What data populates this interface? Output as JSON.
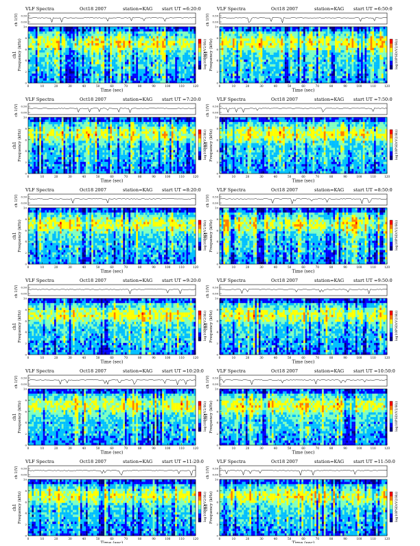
{
  "header_labels": {
    "product": "VLF Spectra",
    "date": "Oct18 2007",
    "station": "station=KAG",
    "start_prefix": "start UT ="
  },
  "axis_labels": {
    "top_ylabel": "ch 1(V)",
    "ylabel_line1": "ch1",
    "ylabel_line2": "Frequency (kHz)",
    "xlabel": "Time (sec)",
    "colorbar_label": "log10PSD(V2/Hz)"
  },
  "palette": [
    "#00007f",
    "#0000ff",
    "#00bfff",
    "#7fffbf",
    "#ffff00",
    "#ff7f00",
    "#ff0000"
  ],
  "chart_data": [
    {
      "type": "heatmap",
      "start_ut": "6:20:0",
      "x_range": [
        0,
        120
      ],
      "y_range": [
        0,
        10
      ],
      "xticks": [
        0,
        10,
        20,
        30,
        40,
        50,
        60,
        70,
        80,
        90,
        100,
        110,
        120
      ],
      "yticks": [
        0,
        2,
        4,
        6,
        8,
        10
      ],
      "signal_ticks": [
        "0.00",
        "0.50"
      ]
    },
    {
      "type": "heatmap",
      "start_ut": "6:50:0",
      "x_range": [
        0,
        120
      ],
      "y_range": [
        0,
        10
      ],
      "xticks": [
        0,
        10,
        20,
        30,
        40,
        50,
        60,
        70,
        80,
        90,
        100,
        110,
        120
      ],
      "yticks": [
        0,
        2,
        4,
        6,
        8,
        10
      ],
      "signal_ticks": [
        "0.00",
        "0.50"
      ]
    },
    {
      "type": "heatmap",
      "start_ut": "7:20:0",
      "x_range": [
        0,
        120
      ],
      "y_range": [
        0,
        10
      ],
      "xticks": [
        0,
        10,
        20,
        30,
        40,
        50,
        60,
        70,
        80,
        90,
        100,
        110,
        120
      ],
      "yticks": [
        0,
        2,
        4,
        6,
        8,
        10
      ],
      "signal_ticks": [
        "0.00",
        "0.50"
      ]
    },
    {
      "type": "heatmap",
      "start_ut": "7:50:0",
      "x_range": [
        0,
        120
      ],
      "y_range": [
        0,
        10
      ],
      "xticks": [
        0,
        10,
        20,
        30,
        40,
        50,
        60,
        70,
        80,
        90,
        100,
        110,
        120
      ],
      "yticks": [
        0,
        2,
        4,
        6,
        8,
        10
      ],
      "signal_ticks": [
        "0.00",
        "0.50"
      ]
    },
    {
      "type": "heatmap",
      "start_ut": "8:20:0",
      "x_range": [
        0,
        120
      ],
      "y_range": [
        0,
        10
      ],
      "xticks": [
        0,
        10,
        20,
        30,
        40,
        50,
        60,
        70,
        80,
        90,
        100,
        110,
        120
      ],
      "yticks": [
        0,
        2,
        4,
        6,
        8,
        10
      ],
      "signal_ticks": [
        "0.00",
        "0.50"
      ]
    },
    {
      "type": "heatmap",
      "start_ut": "8:50:0",
      "x_range": [
        0,
        120
      ],
      "y_range": [
        0,
        10
      ],
      "xticks": [
        0,
        10,
        20,
        30,
        40,
        50,
        60,
        70,
        80,
        90,
        100,
        110,
        120
      ],
      "yticks": [
        0,
        2,
        4,
        6,
        8,
        10
      ],
      "signal_ticks": [
        "0.00",
        "0.50"
      ]
    },
    {
      "type": "heatmap",
      "start_ut": "9:20:0",
      "x_range": [
        0,
        120
      ],
      "y_range": [
        0,
        10
      ],
      "xticks": [
        0,
        10,
        20,
        30,
        40,
        50,
        60,
        70,
        80,
        90,
        100,
        110,
        120
      ],
      "yticks": [
        0,
        2,
        4,
        6,
        8,
        10
      ],
      "signal_ticks": [
        "0.00",
        "0.50"
      ]
    },
    {
      "type": "heatmap",
      "start_ut": "9:50:0",
      "x_range": [
        0,
        120
      ],
      "y_range": [
        0,
        10
      ],
      "xticks": [
        0,
        10,
        20,
        30,
        40,
        50,
        60,
        70,
        80,
        90,
        100,
        110,
        120
      ],
      "yticks": [
        0,
        2,
        4,
        6,
        8,
        10
      ],
      "signal_ticks": [
        "0.00",
        "0.50"
      ]
    },
    {
      "type": "heatmap",
      "start_ut": "10:20:0",
      "x_range": [
        0,
        120
      ],
      "y_range": [
        0,
        10
      ],
      "xticks": [
        0,
        10,
        20,
        30,
        40,
        50,
        60,
        70,
        80,
        90,
        100,
        110,
        120
      ],
      "yticks": [
        0,
        2,
        4,
        6,
        8,
        10
      ],
      "signal_ticks": [
        "0.00",
        "0.50"
      ]
    },
    {
      "type": "heatmap",
      "start_ut": "10:50:0",
      "x_range": [
        0,
        120
      ],
      "y_range": [
        0,
        10
      ],
      "xticks": [
        0,
        10,
        20,
        30,
        40,
        50,
        60,
        70,
        80,
        90,
        100,
        110,
        120
      ],
      "yticks": [
        0,
        2,
        4,
        6,
        8,
        10
      ],
      "signal_ticks": [
        "0.00",
        "0.50"
      ]
    },
    {
      "type": "heatmap",
      "start_ut": "11:20:0",
      "x_range": [
        0,
        120
      ],
      "y_range": [
        0,
        10
      ],
      "xticks": [
        0,
        10,
        20,
        30,
        40,
        50,
        60,
        70,
        80,
        90,
        100,
        110,
        120
      ],
      "yticks": [
        0,
        2,
        4,
        6,
        8,
        10
      ],
      "signal_ticks": [
        "0.00",
        "0.50"
      ]
    },
    {
      "type": "heatmap",
      "start_ut": "11:50:0",
      "x_range": [
        0,
        120
      ],
      "y_range": [
        0,
        10
      ],
      "xticks": [
        0,
        10,
        20,
        30,
        40,
        50,
        60,
        70,
        80,
        90,
        100,
        110,
        120
      ],
      "yticks": [
        0,
        2,
        4,
        6,
        8,
        10
      ],
      "signal_ticks": [
        "0.00",
        "0.50"
      ]
    }
  ]
}
